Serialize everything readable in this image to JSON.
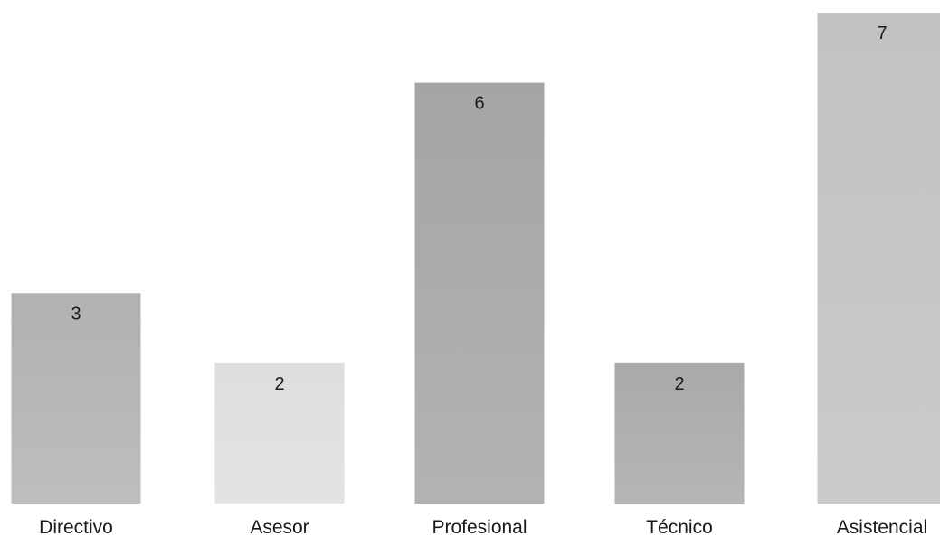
{
  "chart_data": {
    "type": "bar",
    "title": "",
    "xlabel": "",
    "ylabel": "",
    "categories": [
      "Directivo",
      "Asesor",
      "Profesional",
      "Técnico",
      "Asistencial"
    ],
    "values": [
      3,
      2,
      6,
      2,
      7
    ],
    "value_labels": [
      "3",
      "2",
      "6",
      "2",
      "7"
    ],
    "ylim": [
      0,
      7
    ],
    "grid": false,
    "legend": "none",
    "colors": {
      "bars": [
        "#b2b2b2",
        "#dedede",
        "#a5a5a5",
        "#a9a9a9",
        "#c2c2c2"
      ],
      "text": "#1a1a1a",
      "background": "#ffffff"
    }
  }
}
